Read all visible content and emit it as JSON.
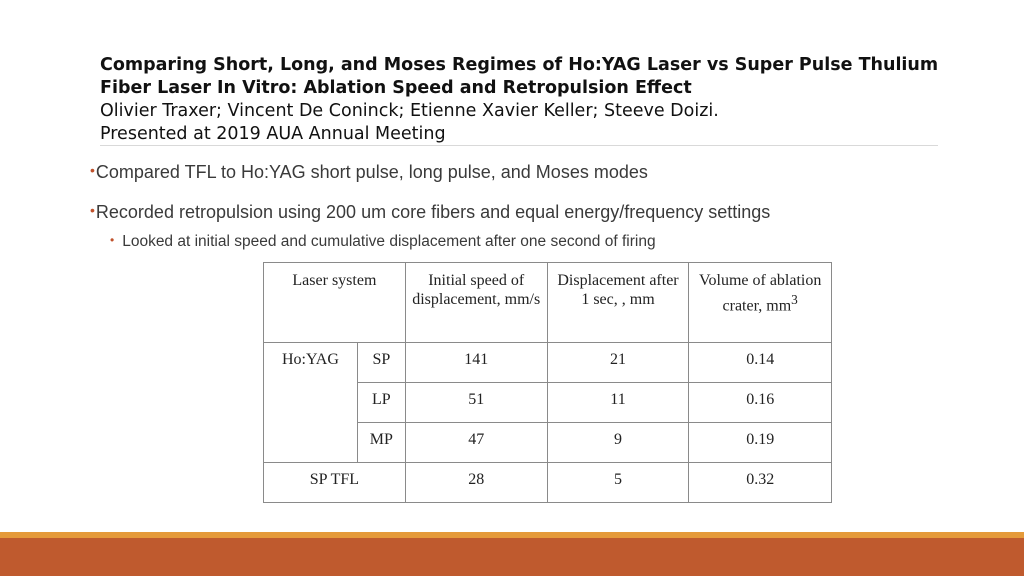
{
  "header": {
    "title": "Comparing Short, Long, and Moses Regimes of Ho:YAG Laser vs Super Pulse Thulium Fiber Laser In Vitro: Ablation Speed and Retropulsion Effect",
    "authors": "Olivier Traxer; Vincent De Coninck; Etienne Xavier Keller; Steeve Doizi.",
    "meeting": "Presented at 2019 AUA Annual Meeting"
  },
  "bullets": {
    "b1": "Compared TFL to Ho:YAG short pulse, long pulse, and Moses modes",
    "b2": "Recorded retropulsion using 200 um core fibers and equal energy/frequency settings",
    "b2_sub": "Looked at initial speed and cumulative displacement after one second of firing"
  },
  "table": {
    "headers": {
      "laser_system": "Laser system",
      "initial_speed": "Initial  speed of displacement, mm/s",
      "displacement": "Displacement after 1 sec, , mm",
      "volume_main": "Volume of ablation crater, mm",
      "volume_sup": "3"
    },
    "hoyag_label": "Ho:YAG",
    "rows": [
      {
        "mode": "SP",
        "speed": "141",
        "disp": "21",
        "vol": "0.14"
      },
      {
        "mode": "LP",
        "speed": "51",
        "disp": "11",
        "vol": "0.16"
      },
      {
        "mode": "MP",
        "speed": "47",
        "disp": "9",
        "vol": "0.19"
      }
    ],
    "tfl": {
      "label": "SP TFL",
      "speed": "28",
      "disp": "5",
      "vol": "0.32"
    }
  },
  "colors": {
    "accent_bar": "#bf5a2e",
    "accent_bar_light": "#e59a3a",
    "bullet_dot": "#c0522c"
  }
}
